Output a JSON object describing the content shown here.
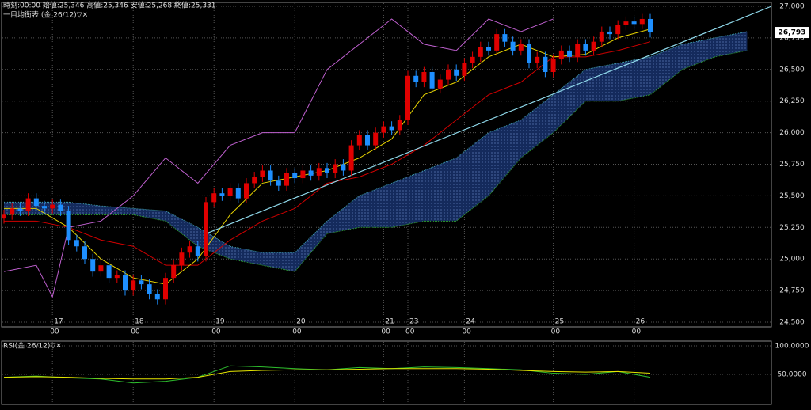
{
  "chart_data": {
    "type": "candlestick",
    "info": "時刻:00:00 始値:25,346 高値:25,346 安値:25,268 終値:25,331",
    "title": "一目均衡表 (金 26/12)▽✕",
    "xlim": [
      0,
      95
    ],
    "xticks": [
      {
        "value": 6,
        "label": "17",
        "time": "00"
      },
      {
        "value": 16,
        "label": "18",
        "time": "00"
      },
      {
        "value": 26,
        "label": "19",
        "time": "00"
      },
      {
        "value": 36,
        "label": "20",
        "time": "00"
      },
      {
        "value": 47,
        "label": "21",
        "time": "00"
      },
      {
        "value": 50,
        "label": "23",
        "time": "00"
      },
      {
        "value": 57,
        "label": "24",
        "time": "00"
      },
      {
        "value": 68,
        "label": "25",
        "time": "00"
      },
      {
        "value": 78,
        "label": "26",
        "time": "00"
      }
    ],
    "ylim": [
      24500,
      27000
    ],
    "yticks": [
      {
        "value": 24500,
        "label": "24,500"
      },
      {
        "value": 24750,
        "label": "24,750"
      },
      {
        "value": 25000,
        "label": "25,000"
      },
      {
        "value": 25250,
        "label": "25,250"
      },
      {
        "value": 25500,
        "label": "25,500"
      },
      {
        "value": 25750,
        "label": "25,750"
      },
      {
        "value": 26000,
        "label": "26,000"
      },
      {
        "value": 26250,
        "label": "26,250"
      },
      {
        "value": 26500,
        "label": "26,500"
      },
      {
        "value": 26750,
        "label": "26,750"
      },
      {
        "value": 27000,
        "label": "27,000"
      }
    ],
    "grid": true,
    "up_color": "#e00000",
    "down_color": "#1e8fff",
    "open": [
      25320,
      25350,
      25400,
      25380,
      25480,
      25420,
      25400,
      25430,
      25380,
      25150,
      25100,
      25000,
      24900,
      24950,
      24850,
      24870,
      24750,
      24830,
      24800,
      24720,
      24680,
      24850,
      24950,
      25050,
      25100,
      25020,
      25450,
      25520,
      25500,
      25560,
      25480,
      25600,
      25650,
      25700,
      25620,
      25580,
      25680,
      25640,
      25700,
      25660,
      25720,
      25680,
      25750,
      25700,
      25900,
      25980,
      25900,
      26000,
      26050,
      26020,
      26100,
      26450,
      26400,
      26480,
      26350,
      26420,
      26500,
      26450,
      26550,
      26600,
      26680,
      26650,
      26780,
      26720,
      26650,
      26700,
      26550,
      26600,
      26480,
      26580,
      26650,
      26600,
      26700,
      26650,
      26720,
      26800,
      26780,
      26850,
      26880,
      26860,
      26900
    ],
    "high": [
      25390,
      25440,
      25440,
      25520,
      25520,
      25460,
      25470,
      25470,
      25420,
      25190,
      25140,
      25040,
      24990,
      24990,
      24910,
      24910,
      24870,
      24870,
      24840,
      24760,
      24890,
      24990,
      25090,
      25140,
      25140,
      25490,
      25560,
      25560,
      25600,
      25600,
      25640,
      25690,
      25740,
      25740,
      25660,
      25720,
      25720,
      25740,
      25740,
      25760,
      25760,
      25790,
      25790,
      25940,
      26020,
      26020,
      26040,
      26090,
      26090,
      26140,
      26490,
      26490,
      26520,
      26520,
      26460,
      26540,
      26540,
      26590,
      26640,
      26720,
      26720,
      26820,
      26820,
      26760,
      26740,
      26740,
      26640,
      26640,
      26620,
      26690,
      26690,
      26740,
      26740,
      26760,
      26840,
      26840,
      26890,
      26920,
      26920,
      26940,
      26940
    ],
    "low": [
      25280,
      25310,
      25340,
      25340,
      25380,
      25360,
      25360,
      25340,
      25110,
      25060,
      24960,
      24860,
      24860,
      24810,
      24810,
      24710,
      24710,
      24760,
      24680,
      24640,
      24640,
      24810,
      24910,
      25010,
      24980,
      24980,
      25410,
      25460,
      25460,
      25440,
      25440,
      25560,
      25610,
      25580,
      25540,
      25540,
      25600,
      25600,
      25620,
      25620,
      25640,
      25640,
      25660,
      25660,
      25860,
      25860,
      25860,
      25960,
      25980,
      25980,
      26060,
      26360,
      26360,
      26310,
      26310,
      26380,
      26410,
      26410,
      26510,
      26560,
      26610,
      26610,
      26680,
      26610,
      26610,
      26510,
      26510,
      26440,
      26440,
      26540,
      26560,
      26560,
      26610,
      26610,
      26680,
      26740,
      26740,
      26810,
      26820,
      26820,
      26753
    ],
    "close": [
      25350,
      25400,
      25380,
      25480,
      25420,
      25400,
      25430,
      25380,
      25150,
      25100,
      25000,
      24900,
      24950,
      24850,
      24870,
      24750,
      24830,
      24800,
      24720,
      24680,
      24850,
      24950,
      25050,
      25100,
      25020,
      25450,
      25520,
      25500,
      25560,
      25480,
      25600,
      25650,
      25700,
      25620,
      25580,
      25680,
      25640,
      25700,
      25660,
      25720,
      25680,
      25750,
      25700,
      25900,
      25980,
      25900,
      26000,
      26050,
      26020,
      26100,
      26450,
      26400,
      26480,
      26350,
      26420,
      26500,
      26450,
      26550,
      26600,
      26680,
      26650,
      26780,
      26720,
      26650,
      26700,
      26550,
      26600,
      26480,
      26580,
      26650,
      26600,
      26700,
      26650,
      26720,
      26800,
      26780,
      26850,
      26880,
      26860,
      26900,
      26793
    ],
    "last_price": {
      "value": 26793,
      "label": "26,793"
    },
    "tenkan": {
      "color": "#e6d200",
      "x": [
        0,
        4,
        8,
        12,
        16,
        20,
        24,
        28,
        32,
        36,
        40,
        44,
        48,
        52,
        56,
        60,
        64,
        68,
        72,
        76,
        80
      ],
      "values": [
        25400,
        25400,
        25250,
        25000,
        24850,
        24800,
        25000,
        25350,
        25600,
        25650,
        25700,
        25800,
        25950,
        26300,
        26400,
        26600,
        26700,
        26600,
        26620,
        26750,
        26820
      ]
    },
    "kijun": {
      "color": "#d00000",
      "x": [
        0,
        4,
        8,
        12,
        16,
        20,
        24,
        28,
        32,
        36,
        40,
        44,
        48,
        52,
        56,
        60,
        64,
        68,
        72,
        76,
        80
      ],
      "values": [
        25300,
        25300,
        25250,
        25150,
        25100,
        24950,
        24950,
        25150,
        25300,
        25400,
        25600,
        25650,
        25750,
        25900,
        26100,
        26300,
        26400,
        26600,
        26600,
        26650,
        26720
      ]
    },
    "chikou": {
      "color": "#c060d0",
      "x": [
        0,
        4,
        6,
        8,
        12,
        16,
        20,
        24,
        28,
        32,
        36,
        40,
        44,
        48,
        52,
        56,
        60,
        64,
        68
      ],
      "values": [
        24900,
        24950,
        24700,
        25250,
        25300,
        25500,
        25800,
        25600,
        25900,
        26000,
        26000,
        26500,
        26700,
        26900,
        26700,
        26650,
        26900,
        26800,
        26900
      ]
    },
    "cloud": {
      "fill": "#17336e",
      "color_a": "#3fa0b0",
      "color_b": "#2ea02e",
      "x": [
        0,
        4,
        8,
        12,
        16,
        20,
        24,
        28,
        32,
        36,
        40,
        44,
        48,
        52,
        56,
        60,
        64,
        68,
        72,
        76,
        80,
        84,
        88,
        92
      ],
      "senkou_a": [
        25450,
        25450,
        25450,
        25420,
        25400,
        25380,
        25250,
        25100,
        25050,
        25050,
        25300,
        25500,
        25600,
        25700,
        25800,
        26000,
        26100,
        26300,
        26500,
        26550,
        26600,
        26700,
        26750,
        26800
      ],
      "senkou_b": [
        25350,
        25350,
        25350,
        25350,
        25350,
        25300,
        25100,
        25000,
        24950,
        24900,
        25200,
        25250,
        25250,
        25300,
        25300,
        25500,
        25800,
        26000,
        26250,
        26250,
        26300,
        26500,
        26600,
        26650
      ]
    },
    "trendline": {
      "color": "#8fd8ea",
      "x": [
        25,
        95
      ],
      "y": [
        25200,
        27000
      ]
    },
    "rsi": {
      "title": "RSI(金 26/12)▽✕",
      "ylim": [
        0,
        100
      ],
      "yticks": [
        {
          "value": 100,
          "label": "100.0000"
        },
        {
          "value": 50,
          "label": "50.0000"
        }
      ],
      "x": [
        0,
        4,
        8,
        12,
        16,
        20,
        24,
        28,
        32,
        36,
        40,
        44,
        48,
        52,
        56,
        60,
        64,
        68,
        72,
        76,
        80
      ],
      "series": [
        {
          "color": "#2ec02e",
          "values": [
            45,
            47,
            44,
            42,
            35,
            38,
            45,
            65,
            63,
            60,
            58,
            62,
            60,
            63,
            62,
            60,
            58,
            52,
            50,
            55,
            45
          ]
        },
        {
          "color": "#e6e600",
          "values": [
            45,
            46,
            45,
            43,
            42,
            42,
            45,
            55,
            57,
            58,
            58,
            59,
            60,
            60,
            60,
            59,
            57,
            55,
            54,
            55,
            52
          ]
        }
      ]
    }
  }
}
